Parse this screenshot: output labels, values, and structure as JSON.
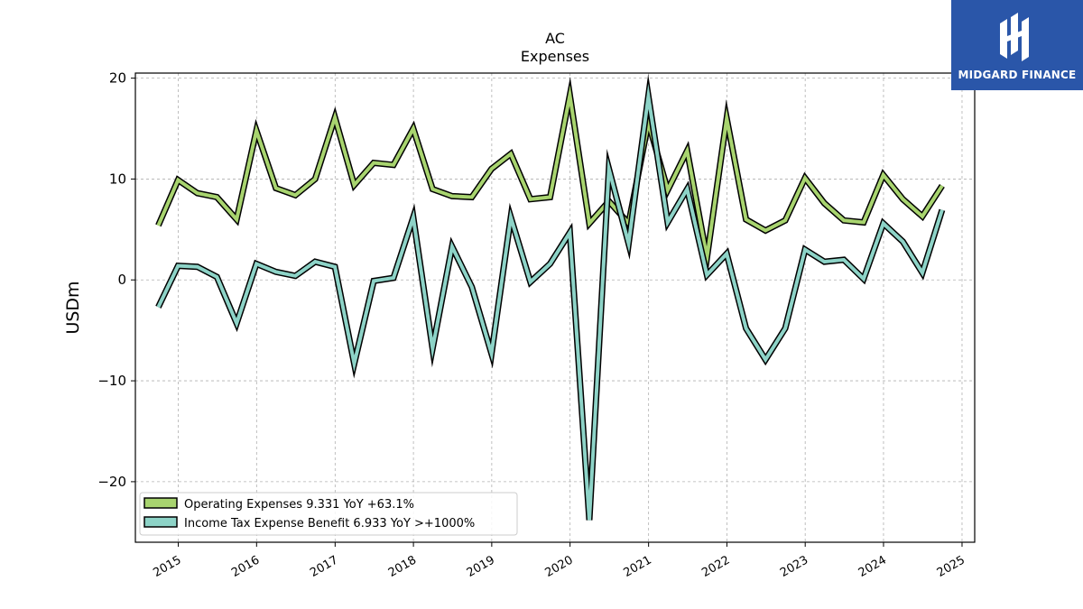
{
  "brand": {
    "name": "MIDGARD FINANCE",
    "background": "#2a56a9"
  },
  "chart_data": {
    "type": "line",
    "title": "AC",
    "subtitle": "Expenses",
    "xlabel": "",
    "ylabel": "USDm",
    "ylim": [
      -26,
      20.5
    ],
    "xlim": [
      "2014-06-15",
      "2025-03-01"
    ],
    "yticks": [
      20,
      10,
      0,
      -10,
      -20
    ],
    "ytick_labels": [
      "20",
      "10",
      "0",
      "−10",
      "−20"
    ],
    "xticks": [
      "2015-01-01",
      "2016-01-01",
      "2017-01-01",
      "2018-01-01",
      "2019-01-01",
      "2020-01-01",
      "2021-01-01",
      "2022-01-01",
      "2023-01-01",
      "2024-01-01",
      "2025-01-01"
    ],
    "xtick_labels": [
      "2015",
      "2016",
      "2017",
      "2018",
      "2019",
      "2020",
      "2021",
      "2022",
      "2023",
      "2024",
      "2025"
    ],
    "grid": true,
    "legend_position": "lower-left",
    "x": [
      "2014-09-30",
      "2014-12-31",
      "2015-03-31",
      "2015-06-30",
      "2015-09-30",
      "2015-12-31",
      "2016-03-31",
      "2016-06-30",
      "2016-09-30",
      "2016-12-31",
      "2017-03-31",
      "2017-06-30",
      "2017-09-30",
      "2017-12-31",
      "2018-03-31",
      "2018-06-30",
      "2018-09-30",
      "2018-12-31",
      "2019-03-31",
      "2019-06-30",
      "2019-09-30",
      "2019-12-31",
      "2020-03-31",
      "2020-06-30",
      "2020-09-30",
      "2020-12-31",
      "2021-03-31",
      "2021-06-30",
      "2021-09-30",
      "2021-12-31",
      "2022-03-31",
      "2022-06-30",
      "2022-09-30",
      "2022-12-31",
      "2023-03-31",
      "2023-06-30",
      "2023-09-30",
      "2023-12-31",
      "2024-03-31",
      "2024-06-30",
      "2024-09-30"
    ],
    "series": [
      {
        "name": "Operating Expenses",
        "legend": "Operating Expenses  9.331 YoY +63.1%",
        "color": "#a8d46f",
        "values": [
          5.4,
          9.9,
          8.6,
          8.2,
          6.0,
          14.8,
          9.1,
          8.4,
          10.0,
          16.1,
          9.4,
          11.6,
          11.4,
          15.0,
          9.0,
          8.3,
          8.2,
          11.0,
          12.5,
          8.0,
          8.2,
          18.3,
          5.6,
          7.8,
          5.6,
          15.6,
          8.9,
          12.8,
          2.2,
          16.0,
          6.0,
          4.9,
          5.9,
          10.1,
          7.6,
          5.9,
          5.7,
          10.4,
          8.0,
          6.3,
          9.331
        ]
      },
      {
        "name": "Income Tax Expense Benefit",
        "legend": "Income Tax Expense Benefit  6.933 YoY >+1000%",
        "color": "#8dd3c7",
        "values": [
          -2.7,
          1.4,
          1.3,
          0.3,
          -4.3,
          1.6,
          0.8,
          0.4,
          1.8,
          1.3,
          -8.3,
          -0.1,
          0.2,
          6.2,
          -6.8,
          3.3,
          -0.7,
          -7.3,
          6.2,
          -0.2,
          1.6,
          4.7,
          -23.8,
          11.0,
          3.6,
          18.2,
          5.7,
          9.0,
          0.5,
          2.6,
          -4.8,
          -7.9,
          -4.8,
          3.0,
          1.8,
          2.0,
          0.1,
          5.6,
          3.8,
          0.7,
          6.933
        ]
      }
    ]
  }
}
